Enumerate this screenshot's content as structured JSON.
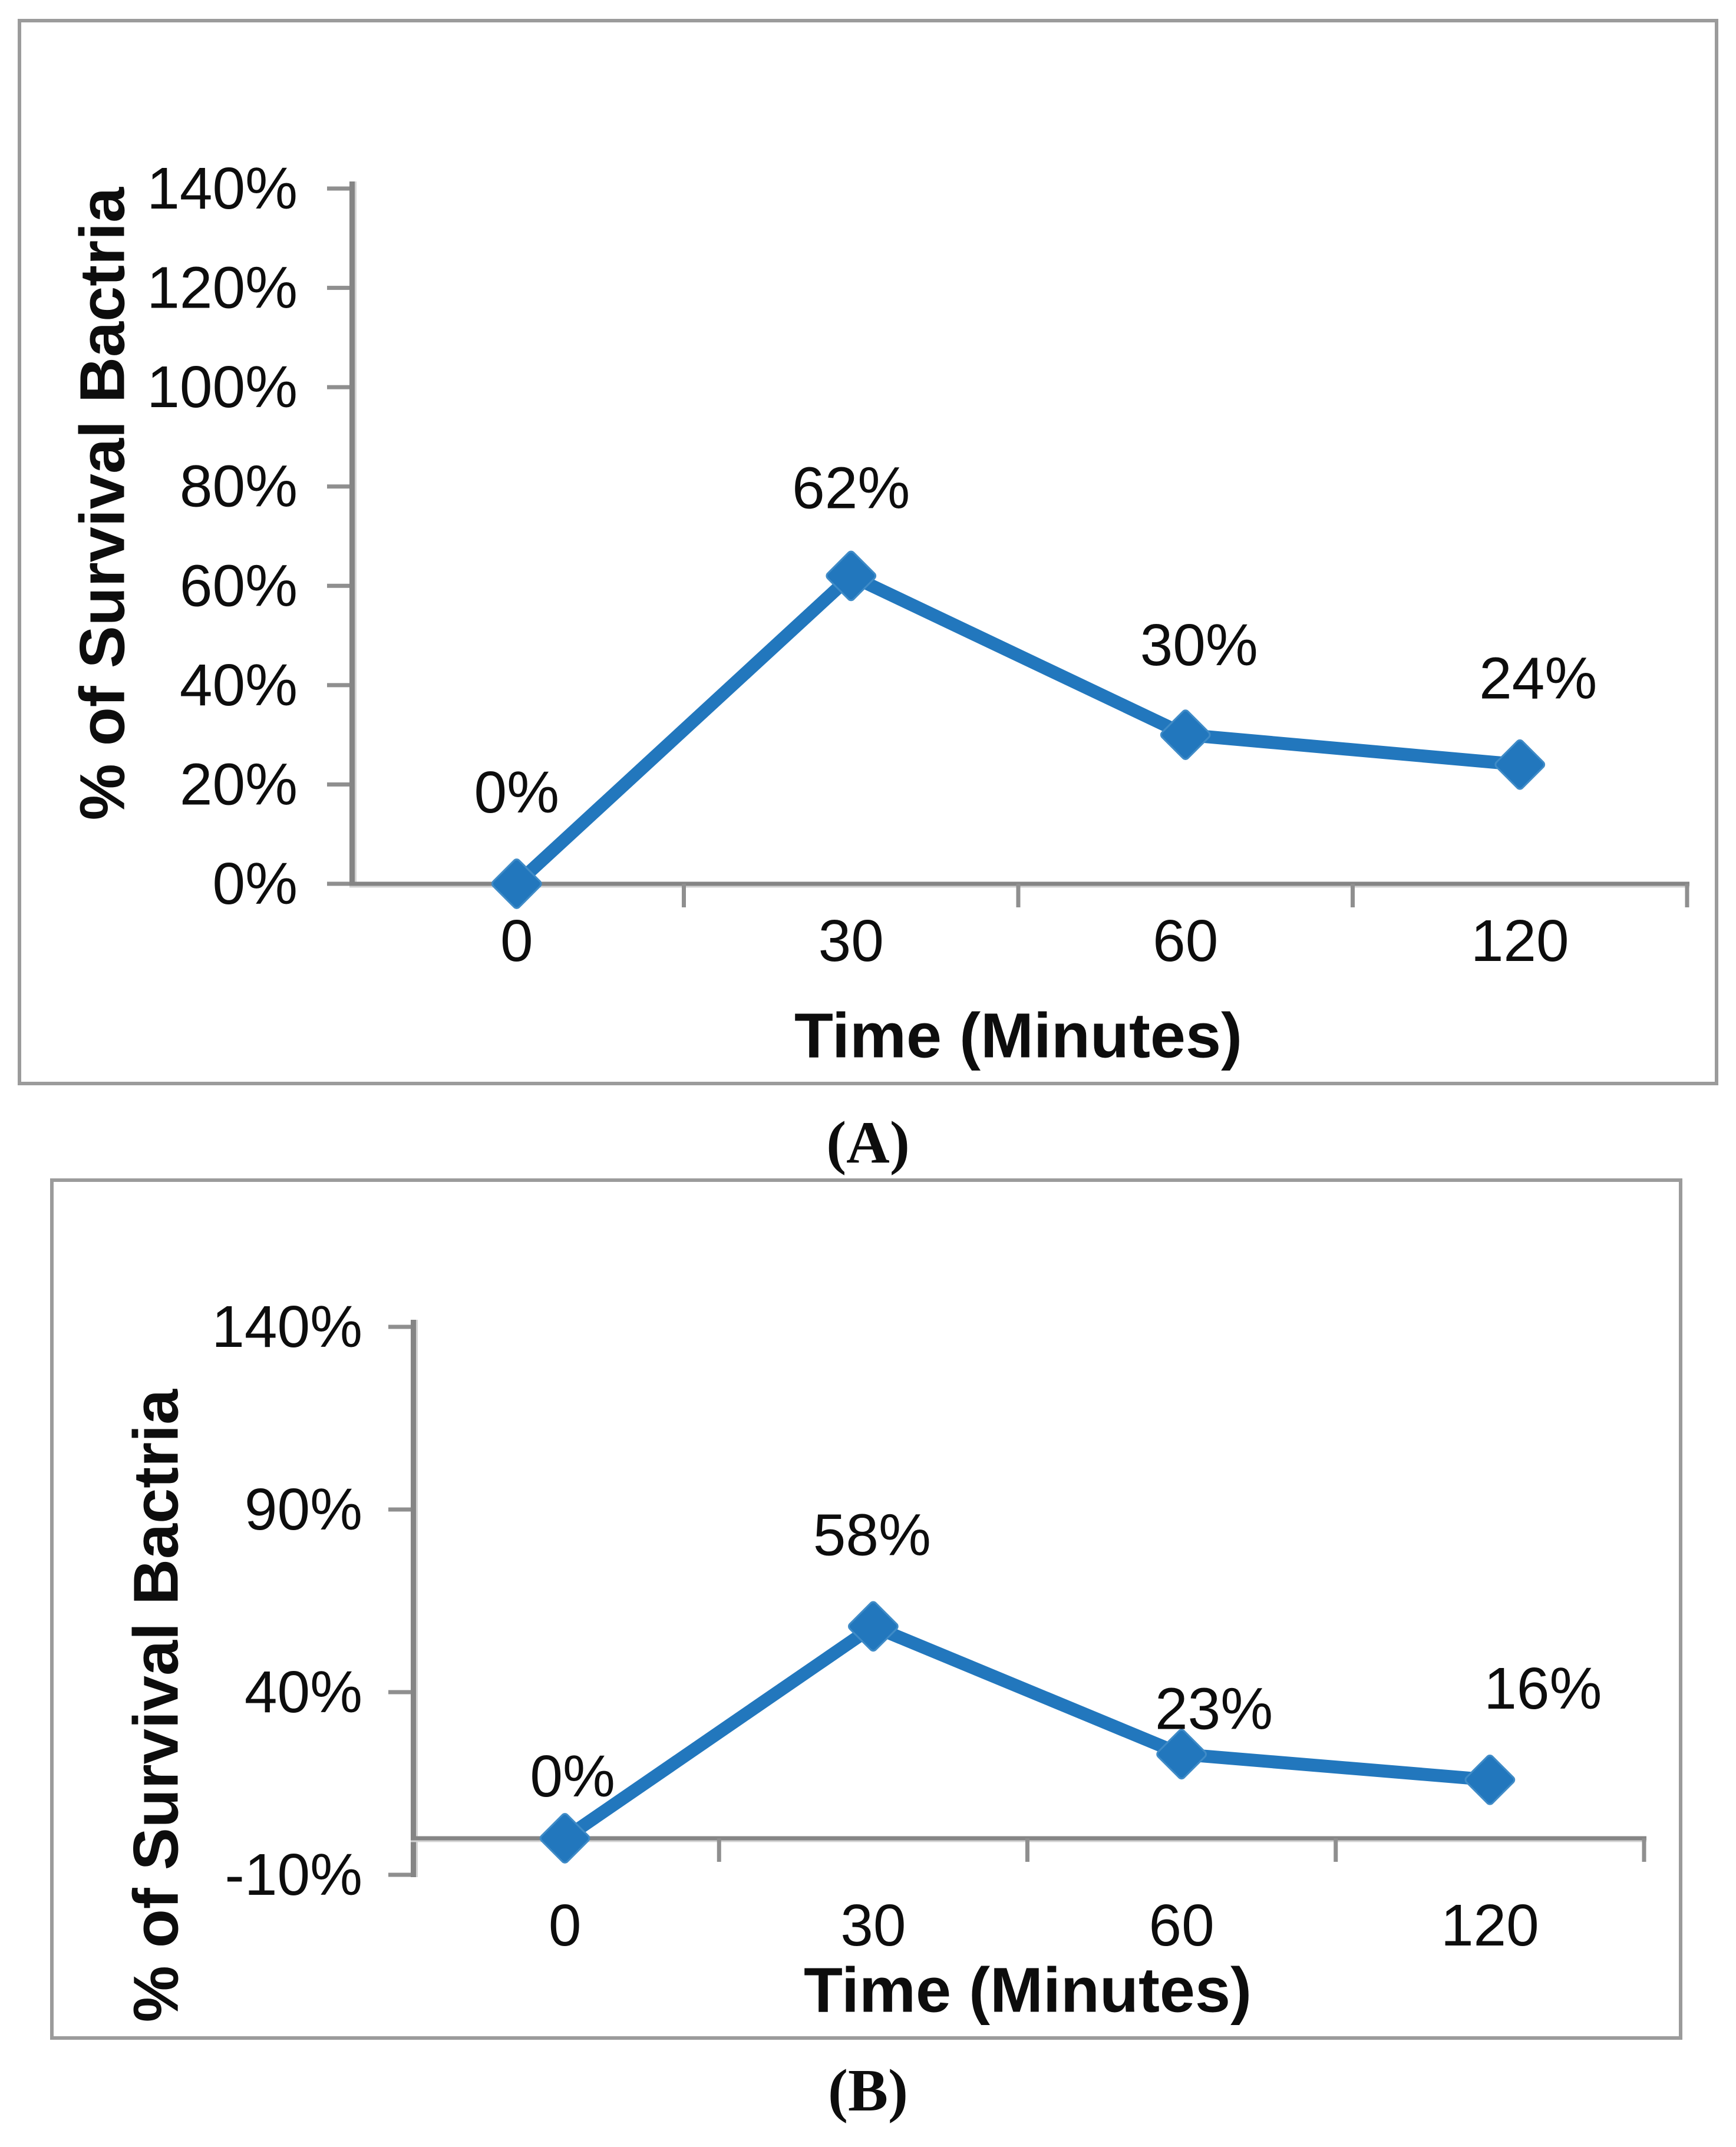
{
  "page": {
    "background": "#ffffff"
  },
  "chart_data": [
    {
      "type": "line",
      "caption": "(A)",
      "title": "",
      "xlabel": "Time (Minutes)",
      "ylabel": "% of Survival Bactria",
      "categories": [
        "0",
        "30",
        "60",
        "120"
      ],
      "values": [
        0,
        62,
        30,
        24
      ],
      "data_labels": [
        "0%",
        "62%",
        "30%",
        "24%"
      ],
      "y_ticks": [
        {
          "value": 140,
          "label": "140%"
        },
        {
          "value": 120,
          "label": "120%"
        },
        {
          "value": 100,
          "label": "100%"
        },
        {
          "value": 80,
          "label": "80%"
        },
        {
          "value": 60,
          "label": "60%"
        },
        {
          "value": 40,
          "label": "40%"
        },
        {
          "value": 20,
          "label": "20%"
        },
        {
          "value": 0,
          "label": "0%"
        }
      ],
      "ylim": [
        0,
        140
      ],
      "grid": "off",
      "legend": "none",
      "marker": "diamond",
      "line_color": "#2277BD",
      "marker_edge_color": "#3f8bc7",
      "axis_color": "#858585",
      "tick_color": "#8f8f8f",
      "text_color": "#0d0d0d"
    },
    {
      "type": "line",
      "caption": "(B)",
      "title": "",
      "xlabel": "Time (Minutes)",
      "ylabel": "% of Survival Bactria",
      "categories": [
        "0",
        "30",
        "60",
        "120"
      ],
      "values": [
        0,
        58,
        23,
        16
      ],
      "data_labels": [
        "0%",
        "58%",
        "23%",
        "16%"
      ],
      "y_ticks": [
        {
          "value": 140,
          "label": "140%"
        },
        {
          "value": 90,
          "label": "90%"
        },
        {
          "value": 40,
          "label": "40%"
        },
        {
          "value": -10,
          "label": "-10%"
        }
      ],
      "ylim": [
        -10,
        140
      ],
      "grid": "off",
      "legend": "none",
      "marker": "diamond",
      "line_color": "#2277BD",
      "marker_edge_color": "#3f8bc7",
      "axis_color": "#858585",
      "tick_color": "#8f8f8f",
      "text_color": "#0d0d0d"
    }
  ]
}
